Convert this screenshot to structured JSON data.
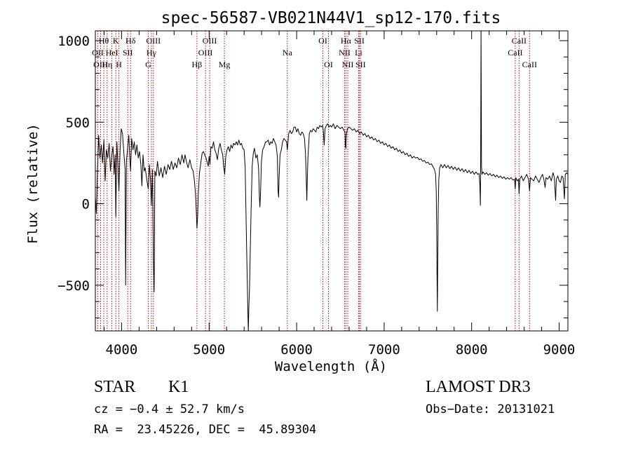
{
  "chart_data": {
    "type": "line",
    "title": "spec-56587-VB021N44V1_sp12-170.fits",
    "xlabel": "Wavelength (Å)",
    "ylabel": "Flux (relative)",
    "xlim": [
      3700,
      9100
    ],
    "ylim": [
      -780,
      1060
    ],
    "xticks": [
      4000,
      5000,
      6000,
      7000,
      8000,
      9000
    ],
    "yticks": [
      -500,
      0,
      500,
      1000
    ],
    "line_color": "#000000",
    "marker_color": "#cc0000",
    "lines": [
      {
        "label": "Hθ",
        "wave": 3797,
        "row": 0
      },
      {
        "label": "OII",
        "wave": 3727,
        "row": 1
      },
      {
        "label": "OIII",
        "wave": 3760,
        "row": 2
      },
      {
        "label": "K",
        "wave": 3934,
        "row": 0
      },
      {
        "label": "HeI",
        "wave": 3889,
        "row": 1
      },
      {
        "label": "Hη",
        "wave": 3835,
        "row": 2
      },
      {
        "label": "SII",
        "wave": 4070,
        "row": 1
      },
      {
        "label": "H",
        "wave": 3969,
        "row": 2
      },
      {
        "label": "Hδ",
        "wave": 4102,
        "row": 0
      },
      {
        "label": "OIII",
        "wave": 4363,
        "row": 0
      },
      {
        "label": "Hγ",
        "wave": 4340,
        "row": 1
      },
      {
        "label": "G",
        "wave": 4305,
        "row": 2
      },
      {
        "label": "OIII",
        "wave": 5007,
        "row": 0
      },
      {
        "label": "OIII",
        "wave": 4959,
        "row": 1
      },
      {
        "label": "Hβ",
        "wave": 4861,
        "row": 2
      },
      {
        "label": "Mg",
        "wave": 5175,
        "row": 2
      },
      {
        "label": "Na",
        "wave": 5894,
        "row": 1
      },
      {
        "label": "OI",
        "wave": 6300,
        "row": 0
      },
      {
        "label": "OI",
        "wave": 6364,
        "row": 2
      },
      {
        "label": "Hα",
        "wave": 6563,
        "row": 0
      },
      {
        "label": "NII",
        "wave": 6548,
        "row": 1
      },
      {
        "label": "NII",
        "wave": 6584,
        "row": 2
      },
      {
        "label": "SII",
        "wave": 6717,
        "row": 0
      },
      {
        "label": "Li",
        "wave": 6708,
        "row": 1
      },
      {
        "label": "SII",
        "wave": 6731,
        "row": 2
      },
      {
        "label": "CaII",
        "wave": 8542,
        "row": 0
      },
      {
        "label": "CaII",
        "wave": 8498,
        "row": 1
      },
      {
        "label": "CaII",
        "wave": 8662,
        "row": 2
      }
    ],
    "spectrum": [
      [
        3700,
        40
      ],
      [
        3712,
        -60
      ],
      [
        3722,
        150
      ],
      [
        3738,
        420
      ],
      [
        3752,
        280
      ],
      [
        3768,
        360
      ],
      [
        3782,
        250
      ],
      [
        3798,
        390
      ],
      [
        3812,
        140
      ],
      [
        3826,
        330
      ],
      [
        3842,
        280
      ],
      [
        3858,
        370
      ],
      [
        3872,
        200
      ],
      [
        3888,
        300
      ],
      [
        3902,
        350
      ],
      [
        3914,
        180
      ],
      [
        3926,
        300
      ],
      [
        3934,
        -80
      ],
      [
        3946,
        380
      ],
      [
        3958,
        240
      ],
      [
        3969,
        80
      ],
      [
        3982,
        320
      ],
      [
        3996,
        460
      ],
      [
        4010,
        430
      ],
      [
        4026,
        310
      ],
      [
        4040,
        210
      ],
      [
        4046,
        -500
      ],
      [
        4055,
        260
      ],
      [
        4070,
        350
      ],
      [
        4082,
        420
      ],
      [
        4092,
        300
      ],
      [
        4102,
        200
      ],
      [
        4115,
        400
      ],
      [
        4130,
        330
      ],
      [
        4145,
        380
      ],
      [
        4160,
        300
      ],
      [
        4175,
        360
      ],
      [
        4190,
        280
      ],
      [
        4205,
        320
      ],
      [
        4220,
        240
      ],
      [
        4232,
        110
      ],
      [
        4245,
        300
      ],
      [
        4258,
        200
      ],
      [
        4270,
        220
      ],
      [
        4290,
        140
      ],
      [
        4305,
        90
      ],
      [
        4318,
        240
      ],
      [
        4330,
        150
      ],
      [
        4340,
        -10
      ],
      [
        4352,
        210
      ],
      [
        4363,
        -350
      ],
      [
        4372,
        -540
      ],
      [
        4380,
        200
      ],
      [
        4395,
        170
      ],
      [
        4410,
        260
      ],
      [
        4430,
        170
      ],
      [
        4450,
        220
      ],
      [
        4470,
        160
      ],
      [
        4490,
        230
      ],
      [
        4510,
        180
      ],
      [
        4530,
        240
      ],
      [
        4550,
        210
      ],
      [
        4570,
        260
      ],
      [
        4590,
        210
      ],
      [
        4610,
        250
      ],
      [
        4630,
        220
      ],
      [
        4650,
        280
      ],
      [
        4670,
        240
      ],
      [
        4690,
        300
      ],
      [
        4710,
        250
      ],
      [
        4725,
        300
      ],
      [
        4740,
        260
      ],
      [
        4760,
        220
      ],
      [
        4780,
        270
      ],
      [
        4800,
        220
      ],
      [
        4818,
        200
      ],
      [
        4832,
        140
      ],
      [
        4845,
        60
      ],
      [
        4855,
        -70
      ],
      [
        4861,
        -150
      ],
      [
        4868,
        -90
      ],
      [
        4876,
        60
      ],
      [
        4890,
        190
      ],
      [
        4905,
        250
      ],
      [
        4920,
        310
      ],
      [
        4935,
        320
      ],
      [
        4950,
        300
      ],
      [
        4965,
        280
      ],
      [
        4980,
        250
      ],
      [
        4990,
        230
      ],
      [
        5000,
        290
      ],
      [
        5010,
        240
      ],
      [
        5020,
        350
      ],
      [
        5035,
        340
      ],
      [
        5050,
        380
      ],
      [
        5065,
        330
      ],
      [
        5080,
        310
      ],
      [
        5095,
        270
      ],
      [
        5110,
        340
      ],
      [
        5125,
        370
      ],
      [
        5140,
        330
      ],
      [
        5155,
        300
      ],
      [
        5168,
        220
      ],
      [
        5178,
        180
      ],
      [
        5190,
        290
      ],
      [
        5205,
        330
      ],
      [
        5220,
        350
      ],
      [
        5235,
        320
      ],
      [
        5250,
        360
      ],
      [
        5265,
        340
      ],
      [
        5280,
        370
      ],
      [
        5295,
        360
      ],
      [
        5310,
        380
      ],
      [
        5325,
        360
      ],
      [
        5340,
        390
      ],
      [
        5355,
        360
      ],
      [
        5370,
        370
      ],
      [
        5385,
        340
      ],
      [
        5400,
        330
      ],
      [
        5412,
        220
      ],
      [
        5420,
        -20
      ],
      [
        5428,
        -260
      ],
      [
        5436,
        -480
      ],
      [
        5442,
        -640
      ],
      [
        5448,
        -780
      ],
      [
        5454,
        -640
      ],
      [
        5462,
        -520
      ],
      [
        5470,
        -300
      ],
      [
        5480,
        -30
      ],
      [
        5492,
        230
      ],
      [
        5505,
        310
      ],
      [
        5518,
        340
      ],
      [
        5535,
        280
      ],
      [
        5550,
        300
      ],
      [
        5565,
        220
      ],
      [
        5575,
        40
      ],
      [
        5580,
        -20
      ],
      [
        5588,
        80
      ],
      [
        5598,
        260
      ],
      [
        5612,
        330
      ],
      [
        5628,
        350
      ],
      [
        5645,
        380
      ],
      [
        5660,
        380
      ],
      [
        5675,
        390
      ],
      [
        5690,
        360
      ],
      [
        5705,
        380
      ],
      [
        5720,
        370
      ],
      [
        5735,
        400
      ],
      [
        5750,
        380
      ],
      [
        5765,
        360
      ],
      [
        5780,
        290
      ],
      [
        5788,
        80
      ],
      [
        5794,
        40
      ],
      [
        5800,
        160
      ],
      [
        5810,
        300
      ],
      [
        5825,
        330
      ],
      [
        5840,
        380
      ],
      [
        5855,
        400
      ],
      [
        5870,
        390
      ],
      [
        5885,
        380
      ],
      [
        5894,
        330
      ],
      [
        5910,
        430
      ],
      [
        5925,
        450
      ],
      [
        5940,
        430
      ],
      [
        5955,
        440
      ],
      [
        5970,
        470
      ],
      [
        5985,
        470
      ],
      [
        6000,
        440
      ],
      [
        6015,
        460
      ],
      [
        6030,
        430
      ],
      [
        6045,
        420
      ],
      [
        6060,
        440
      ],
      [
        6075,
        430
      ],
      [
        6090,
        400
      ],
      [
        6102,
        300
      ],
      [
        6110,
        160
      ],
      [
        6116,
        20
      ],
      [
        6122,
        150
      ],
      [
        6130,
        290
      ],
      [
        6145,
        430
      ],
      [
        6160,
        450
      ],
      [
        6175,
        440
      ],
      [
        6190,
        460
      ],
      [
        6205,
        450
      ],
      [
        6220,
        440
      ],
      [
        6235,
        470
      ],
      [
        6250,
        460
      ],
      [
        6265,
        480
      ],
      [
        6280,
        470
      ],
      [
        6295,
        480
      ],
      [
        6305,
        450
      ],
      [
        6315,
        360
      ],
      [
        6325,
        460
      ],
      [
        6340,
        480
      ],
      [
        6355,
        490
      ],
      [
        6370,
        470
      ],
      [
        6385,
        480
      ],
      [
        6400,
        470
      ],
      [
        6420,
        490
      ],
      [
        6440,
        460
      ],
      [
        6460,
        480
      ],
      [
        6480,
        470
      ],
      [
        6500,
        460
      ],
      [
        6520,
        470
      ],
      [
        6540,
        450
      ],
      [
        6552,
        440
      ],
      [
        6558,
        350
      ],
      [
        6563,
        340
      ],
      [
        6568,
        420
      ],
      [
        6580,
        460
      ],
      [
        6600,
        470
      ],
      [
        6620,
        460
      ],
      [
        6640,
        450
      ],
      [
        6660,
        460
      ],
      [
        6680,
        440
      ],
      [
        6700,
        450
      ],
      [
        6720,
        430
      ],
      [
        6740,
        440
      ],
      [
        6760,
        420
      ],
      [
        6780,
        430
      ],
      [
        6800,
        410
      ],
      [
        6820,
        420
      ],
      [
        6840,
        400
      ],
      [
        6860,
        410
      ],
      [
        6880,
        390
      ],
      [
        6900,
        400
      ],
      [
        6920,
        380
      ],
      [
        6940,
        390
      ],
      [
        6960,
        370
      ],
      [
        6980,
        380
      ],
      [
        7000,
        360
      ],
      [
        7020,
        370
      ],
      [
        7040,
        350
      ],
      [
        7060,
        360
      ],
      [
        7080,
        340
      ],
      [
        7100,
        350
      ],
      [
        7120,
        330
      ],
      [
        7140,
        340
      ],
      [
        7160,
        320
      ],
      [
        7180,
        330
      ],
      [
        7200,
        310
      ],
      [
        7220,
        320
      ],
      [
        7240,
        300
      ],
      [
        7260,
        310
      ],
      [
        7280,
        290
      ],
      [
        7300,
        300
      ],
      [
        7320,
        280
      ],
      [
        7340,
        290
      ],
      [
        7360,
        280
      ],
      [
        7380,
        285
      ],
      [
        7400,
        270
      ],
      [
        7420,
        275
      ],
      [
        7440,
        260
      ],
      [
        7460,
        265
      ],
      [
        7480,
        250
      ],
      [
        7500,
        255
      ],
      [
        7520,
        240
      ],
      [
        7540,
        245
      ],
      [
        7560,
        225
      ],
      [
        7575,
        210
      ],
      [
        7588,
        180
      ],
      [
        7595,
        80
      ],
      [
        7600,
        -130
      ],
      [
        7604,
        -430
      ],
      [
        7608,
        -660
      ],
      [
        7612,
        -400
      ],
      [
        7618,
        -40
      ],
      [
        7625,
        150
      ],
      [
        7635,
        220
      ],
      [
        7650,
        240
      ],
      [
        7670,
        220
      ],
      [
        7690,
        240
      ],
      [
        7710,
        220
      ],
      [
        7730,
        235
      ],
      [
        7750,
        215
      ],
      [
        7770,
        230
      ],
      [
        7790,
        210
      ],
      [
        7810,
        225
      ],
      [
        7830,
        205
      ],
      [
        7850,
        220
      ],
      [
        7870,
        200
      ],
      [
        7890,
        215
      ],
      [
        7910,
        195
      ],
      [
        7930,
        210
      ],
      [
        7950,
        190
      ],
      [
        7970,
        205
      ],
      [
        7990,
        185
      ],
      [
        8010,
        200
      ],
      [
        8030,
        180
      ],
      [
        8050,
        195
      ],
      [
        8070,
        180
      ],
      [
        8085,
        185
      ],
      [
        8094,
        120
      ],
      [
        8100,
        -10
      ],
      [
        8104,
        400
      ],
      [
        8107,
        1060
      ],
      [
        8110,
        700
      ],
      [
        8113,
        230
      ],
      [
        8118,
        180
      ],
      [
        8130,
        195
      ],
      [
        8150,
        180
      ],
      [
        8170,
        190
      ],
      [
        8190,
        175
      ],
      [
        8210,
        185
      ],
      [
        8230,
        170
      ],
      [
        8250,
        180
      ],
      [
        8270,
        165
      ],
      [
        8290,
        175
      ],
      [
        8310,
        160
      ],
      [
        8330,
        170
      ],
      [
        8350,
        155
      ],
      [
        8370,
        165
      ],
      [
        8390,
        150
      ],
      [
        8410,
        160
      ],
      [
        8430,
        150
      ],
      [
        8450,
        160
      ],
      [
        8470,
        145
      ],
      [
        8490,
        150
      ],
      [
        8498,
        90
      ],
      [
        8505,
        160
      ],
      [
        8520,
        140
      ],
      [
        8535,
        150
      ],
      [
        8542,
        60
      ],
      [
        8550,
        150
      ],
      [
        8570,
        170
      ],
      [
        8590,
        140
      ],
      [
        8610,
        160
      ],
      [
        8630,
        180
      ],
      [
        8650,
        150
      ],
      [
        8662,
        80
      ],
      [
        8672,
        160
      ],
      [
        8690,
        150
      ],
      [
        8710,
        140
      ],
      [
        8730,
        170
      ],
      [
        8750,
        150
      ],
      [
        8770,
        130
      ],
      [
        8790,
        160
      ],
      [
        8810,
        180
      ],
      [
        8825,
        150
      ],
      [
        8840,
        100
      ],
      [
        8850,
        160
      ],
      [
        8870,
        150
      ],
      [
        8890,
        170
      ],
      [
        8910,
        140
      ],
      [
        8930,
        190
      ],
      [
        8945,
        160
      ],
      [
        8960,
        20
      ],
      [
        8968,
        150
      ],
      [
        8985,
        170
      ],
      [
        9000,
        140
      ],
      [
        9015,
        130
      ],
      [
        9030,
        170
      ],
      [
        9045,
        160
      ],
      [
        9060,
        30
      ],
      [
        9070,
        180
      ],
      [
        9085,
        190
      ],
      [
        9100,
        180
      ]
    ]
  },
  "info": {
    "object_class": "STAR",
    "subclass": "K1",
    "survey": "LAMOST DR3",
    "cz": "cz = −0.4 ± 52.7 km/s",
    "obs_date": "Obs−Date: 20131021",
    "coords": "RA =  23.45226, DEC =  45.89304"
  }
}
